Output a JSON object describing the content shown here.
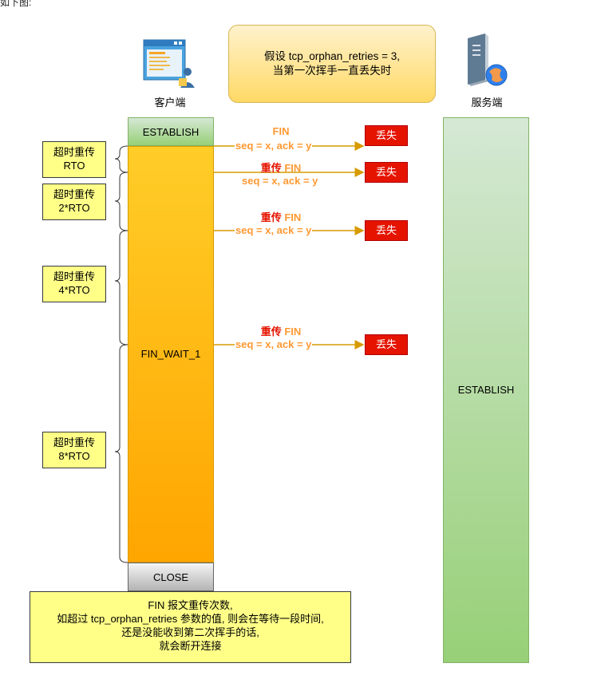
{
  "caption": "如下图:",
  "note": {
    "line1": "假设  tcp_orphan_retries = 3,",
    "line2": "当第一次挥手一直丢失时"
  },
  "client": {
    "label": "客户端",
    "icon": "client-computer-icon",
    "state_establish": "ESTABLISH",
    "state_fin_wait": "FIN_WAIT_1",
    "state_close": "CLOSE"
  },
  "server": {
    "label": "服务端",
    "icon": "server-icon",
    "state_establish": "ESTABLISH"
  },
  "timeouts": [
    {
      "line1": "超时重传",
      "line2": "RTO"
    },
    {
      "line1": "超时重传",
      "line2": "2*RTO"
    },
    {
      "line1": "超时重传",
      "line2": "4*RTO"
    },
    {
      "line1": "超时重传",
      "line2": "8*RTO"
    }
  ],
  "messages": [
    {
      "prefix": "",
      "name": "FIN",
      "seq": "seq = x,  ack = y",
      "lost": "丢失"
    },
    {
      "prefix": "重传 ",
      "name": "FIN",
      "seq": "seq = x,  ack = y",
      "lost": "丢失"
    },
    {
      "prefix": "重传 ",
      "name": "FIN",
      "seq": "seq = x,  ack = y",
      "lost": "丢失"
    },
    {
      "prefix": "重传 ",
      "name": "FIN",
      "seq": "seq = x,  ack = y",
      "lost": "丢失"
    }
  ],
  "bottom_note": {
    "line1": "FIN 报文重传次数,",
    "line2": "如超过 tcp_orphan_retries 参数的值, 则会在等待一段时间,",
    "line3": "还是没能收到第二次挥手的话,",
    "line4": "就会断开连接"
  },
  "colors": {
    "lost_red": "#e51400",
    "arrow_orange": "#d79b00",
    "fin_orange": "#ff9933"
  }
}
